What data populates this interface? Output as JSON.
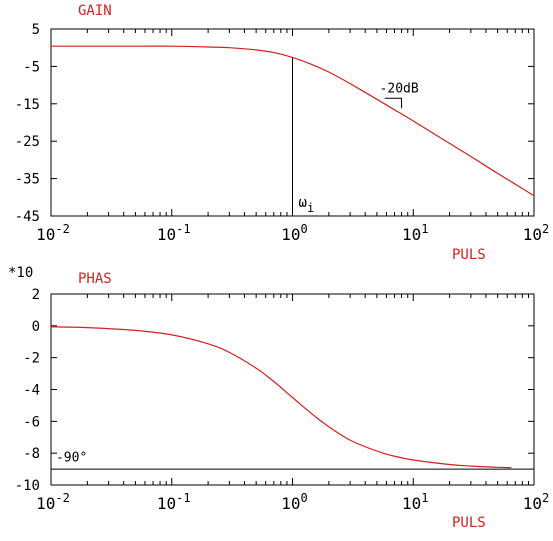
{
  "colors": {
    "curve": "#d42020",
    "label": "#d42020",
    "axis": "#000000"
  },
  "chart_data": [
    {
      "type": "line",
      "title": "GAIN",
      "xlabel": "PULS",
      "ylabel": "",
      "xscale": "log",
      "xlim": [
        0.01,
        100
      ],
      "ylim": [
        -45,
        5
      ],
      "yticks": [
        5,
        -5,
        -15,
        -25,
        -35,
        -45
      ],
      "yticklabels": [
        "5",
        "-5",
        "-15",
        "-25",
        "-35",
        "-45"
      ],
      "xtick_bases": [
        "10",
        "10",
        "10",
        "10",
        "10"
      ],
      "xtick_exps": [
        "-2",
        "-1",
        "0",
        "1",
        "2"
      ],
      "grid": false,
      "series": [
        {
          "x": [
            0.01,
            0.02,
            0.05,
            0.1,
            0.2,
            0.3,
            0.5,
            0.7,
            1,
            1.5,
            2,
            3,
            5,
            7,
            10,
            20,
            30,
            50,
            70,
            100
          ],
          "y": [
            0.4,
            0.4,
            0.4,
            0.4,
            0.2,
            0.0,
            -0.6,
            -1.3,
            -2.6,
            -4.7,
            -6.5,
            -9.6,
            -13.8,
            -16.6,
            -19.6,
            -25.6,
            -29.1,
            -33.6,
            -36.5,
            -39.6
          ]
        }
      ],
      "annotations": [
        {
          "text": "-20dB",
          "x": 8,
          "y": -11.5
        },
        {
          "text": "ω",
          "sub": "i",
          "x": 1,
          "y": -42
        }
      ],
      "vline": {
        "x": 1,
        "from": -45,
        "to": -2.6
      }
    },
    {
      "type": "line",
      "title": "PHAS",
      "xlabel": "PULS",
      "ylabel": "*10",
      "xscale": "log",
      "xlim": [
        0.01,
        100
      ],
      "ylim": [
        -10,
        2
      ],
      "yticks": [
        2,
        0,
        -2,
        -4,
        -6,
        -8,
        -10
      ],
      "yticklabels": [
        "2",
        "0",
        "-2",
        "-4",
        "-6",
        "-8",
        "-10"
      ],
      "xtick_bases": [
        "10",
        "10",
        "10",
        "10",
        "10"
      ],
      "xtick_exps": [
        "-2",
        "-1",
        "0",
        "1",
        "2"
      ],
      "grid": false,
      "series": [
        {
          "x": [
            0.01,
            0.02,
            0.05,
            0.1,
            0.2,
            0.3,
            0.5,
            0.7,
            1,
            1.5,
            2,
            3,
            5,
            7,
            10,
            20,
            30,
            50,
            65
          ],
          "y": [
            -0.06,
            -0.11,
            -0.29,
            -0.57,
            -1.13,
            -1.67,
            -2.66,
            -3.5,
            -4.5,
            -5.63,
            -6.34,
            -7.18,
            -7.87,
            -8.19,
            -8.43,
            -8.71,
            -8.81,
            -8.89,
            -8.91
          ]
        }
      ],
      "annotations": [
        {
          "text": "-90°",
          "x": 0.011,
          "y": -8.6
        }
      ],
      "hline": {
        "y": -9
      }
    }
  ]
}
